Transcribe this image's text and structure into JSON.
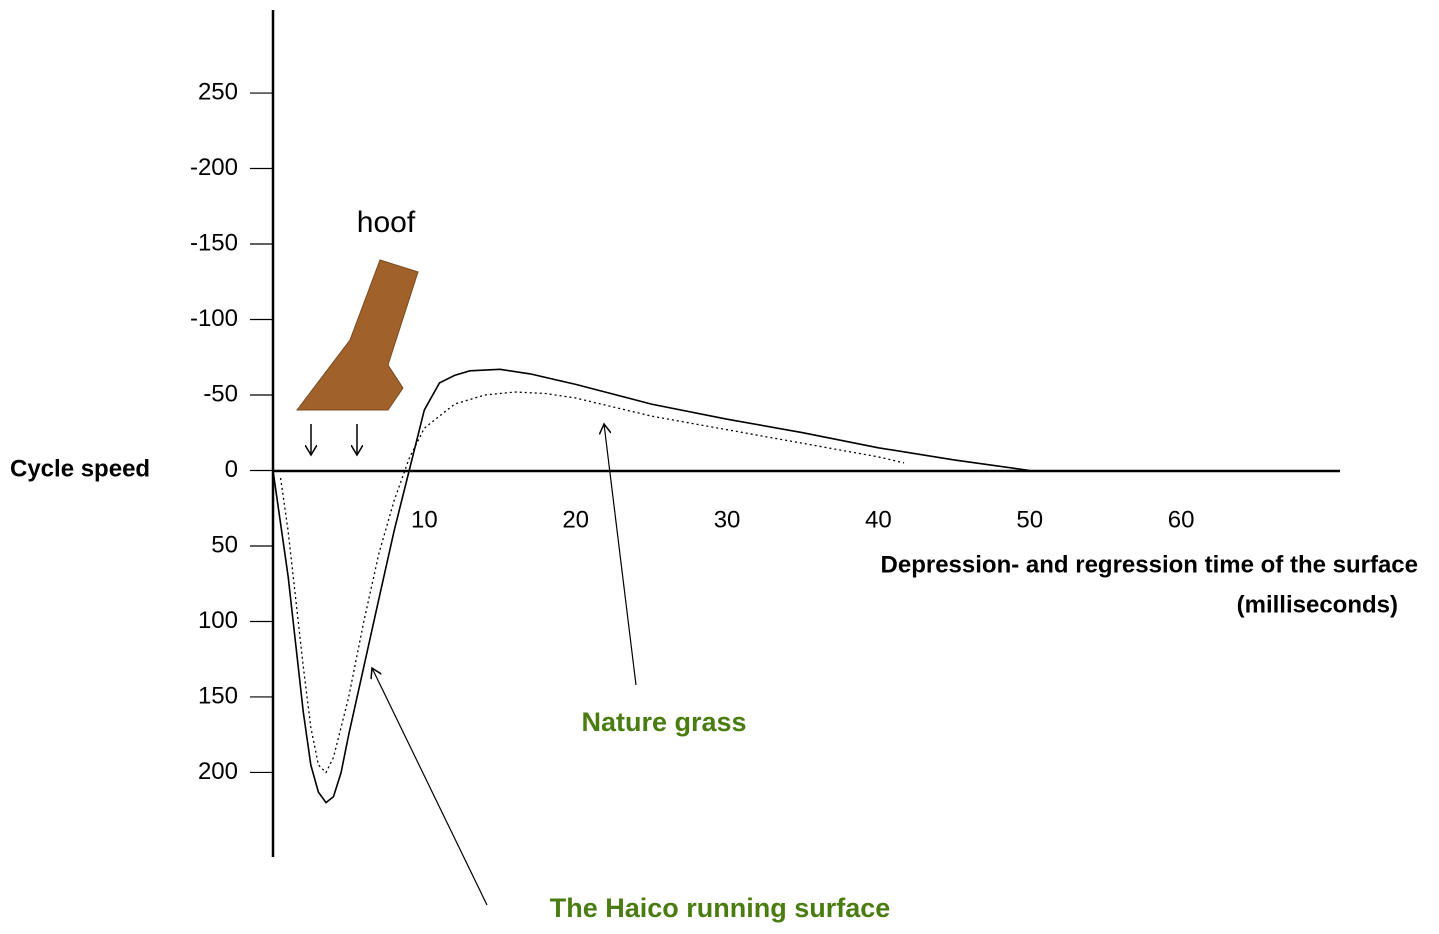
{
  "chart_data": {
    "type": "line",
    "y_label": "Cycle speed",
    "x_label": [
      "Depression- and regression time of the surface",
      "(milliseconds)"
    ],
    "annotation": "hoof",
    "label_color": "#4a7c12",
    "xlim": [
      0,
      70.5
    ],
    "xticks": [
      10,
      20,
      30,
      40,
      50,
      60
    ],
    "ylim": [
      256,
      -305
    ],
    "yticks": [
      {
        "value": -250,
        "label": "250"
      },
      -200,
      -150,
      -100,
      -50,
      0,
      50,
      100,
      150,
      200
    ],
    "series": [
      {
        "name": "The Haico running surface",
        "color": "#000000",
        "style": "solid",
        "x": [
          0,
          1,
          2,
          2.5,
          3,
          3.5,
          4,
          4.5,
          5,
          6,
          7,
          8,
          9,
          10,
          11,
          12,
          13,
          15,
          17,
          20,
          25,
          30,
          35,
          40,
          45,
          50
        ],
        "values": [
          0,
          70,
          160,
          195,
          213,
          220,
          216,
          200,
          175,
          130,
          85,
          40,
          0,
          -40,
          -58,
          -63,
          -66,
          -67,
          -64,
          -57,
          -44,
          -34,
          -25,
          -15,
          -7,
          0
        ]
      },
      {
        "name": "Nature grass",
        "color": "#000000",
        "style": "dotted",
        "x": [
          0.5,
          1,
          1.5,
          2,
          2.5,
          3,
          3.5,
          4,
          5,
          6,
          7,
          8,
          9,
          10,
          12,
          14,
          16,
          18,
          20,
          25,
          30,
          35,
          40,
          41.7
        ],
        "values": [
          5,
          40,
          85,
          130,
          170,
          195,
          200,
          190,
          150,
          100,
          55,
          20,
          -8,
          -28,
          -44,
          -50,
          -52,
          -51,
          -48,
          -36,
          -27,
          -18,
          -9,
          -5
        ]
      }
    ]
  }
}
